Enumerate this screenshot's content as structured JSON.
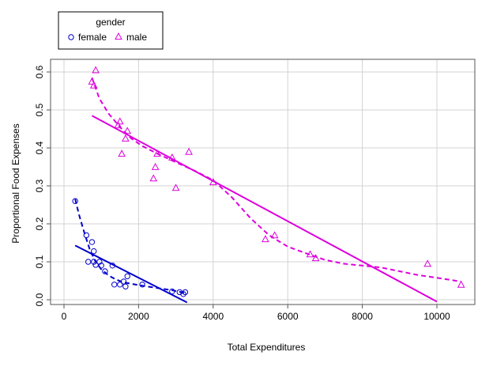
{
  "chart_data": {
    "type": "scatter",
    "title": "",
    "xlabel": "Total Expenditures",
    "ylabel": "Proportional Food Expenses",
    "xlim": [
      0,
      11000
    ],
    "ylim": [
      0,
      0.6
    ],
    "x_ticks": [
      0,
      2000,
      4000,
      6000,
      8000,
      10000
    ],
    "y_ticks": [
      0.0,
      0.1,
      0.2,
      0.3,
      0.4,
      0.5,
      0.6
    ],
    "x_tick_labels": [
      "0",
      "2000",
      "4000",
      "6000",
      "8000",
      "10000"
    ],
    "y_tick_labels": [
      "0.0",
      "0.1",
      "0.2",
      "0.3",
      "0.4",
      "0.5",
      "0.6"
    ],
    "grid": true,
    "legend": {
      "title": "gender",
      "placement": "top-left, outside plot",
      "entries": [
        {
          "label": "female",
          "marker": "circle",
          "color": "#0000cc"
        },
        {
          "label": "male",
          "marker": "triangle",
          "color": "#dd00dd"
        }
      ]
    },
    "series": [
      {
        "name": "female",
        "color": "#0000cc",
        "marker": "circle",
        "points": [
          [
            300,
            0.26
          ],
          [
            600,
            0.17
          ],
          [
            650,
            0.1
          ],
          [
            750,
            0.152
          ],
          [
            800,
            0.128
          ],
          [
            800,
            0.1
          ],
          [
            850,
            0.092
          ],
          [
            950,
            0.1
          ],
          [
            1000,
            0.09
          ],
          [
            1100,
            0.075
          ],
          [
            1300,
            0.09
          ],
          [
            1350,
            0.04
          ],
          [
            1500,
            0.04
          ],
          [
            1600,
            0.048
          ],
          [
            1650,
            0.035
          ],
          [
            1700,
            0.062
          ],
          [
            2100,
            0.04
          ],
          [
            2900,
            0.022
          ],
          [
            3100,
            0.02
          ],
          [
            3200,
            0.015
          ],
          [
            3250,
            0.02
          ]
        ],
        "linear_fit": [
          [
            300,
            0.143
          ],
          [
            3300,
            -0.007
          ]
        ],
        "smooth": [
          [
            300,
            0.265
          ],
          [
            400,
            0.225
          ],
          [
            550,
            0.175
          ],
          [
            700,
            0.13
          ],
          [
            850,
            0.1
          ],
          [
            1000,
            0.08
          ],
          [
            1200,
            0.064
          ],
          [
            1400,
            0.053
          ],
          [
            1600,
            0.046
          ],
          [
            1800,
            0.042
          ],
          [
            2100,
            0.037
          ],
          [
            2500,
            0.031
          ],
          [
            2900,
            0.025
          ],
          [
            3250,
            0.018
          ]
        ]
      },
      {
        "name": "male",
        "color": "#dd00dd",
        "marker": "triangle",
        "points": [
          [
            750,
            0.575
          ],
          [
            800,
            0.565
          ],
          [
            850,
            0.605
          ],
          [
            1450,
            0.46
          ],
          [
            1500,
            0.47
          ],
          [
            1550,
            0.385
          ],
          [
            1650,
            0.425
          ],
          [
            1700,
            0.445
          ],
          [
            2400,
            0.32
          ],
          [
            2450,
            0.35
          ],
          [
            2500,
            0.385
          ],
          [
            2900,
            0.375
          ],
          [
            3000,
            0.295
          ],
          [
            3350,
            0.39
          ],
          [
            4000,
            0.31
          ],
          [
            5400,
            0.16
          ],
          [
            5650,
            0.17
          ],
          [
            6600,
            0.12
          ],
          [
            6750,
            0.11
          ],
          [
            9750,
            0.095
          ],
          [
            10650,
            0.04
          ]
        ],
        "linear_fit": [
          [
            750,
            0.485
          ],
          [
            10000,
            -0.005
          ]
        ],
        "smooth": [
          [
            750,
            0.585
          ],
          [
            950,
            0.53
          ],
          [
            1200,
            0.49
          ],
          [
            1500,
            0.455
          ],
          [
            1800,
            0.425
          ],
          [
            2100,
            0.405
          ],
          [
            2500,
            0.385
          ],
          [
            3000,
            0.362
          ],
          [
            3500,
            0.34
          ],
          [
            4000,
            0.315
          ],
          [
            4500,
            0.27
          ],
          [
            5000,
            0.215
          ],
          [
            5500,
            0.17
          ],
          [
            6000,
            0.14
          ],
          [
            6500,
            0.122
          ],
          [
            7000,
            0.105
          ],
          [
            7500,
            0.095
          ],
          [
            8000,
            0.09
          ],
          [
            8500,
            0.085
          ],
          [
            9000,
            0.075
          ],
          [
            9500,
            0.065
          ],
          [
            10000,
            0.058
          ],
          [
            10650,
            0.048
          ]
        ]
      }
    ]
  }
}
